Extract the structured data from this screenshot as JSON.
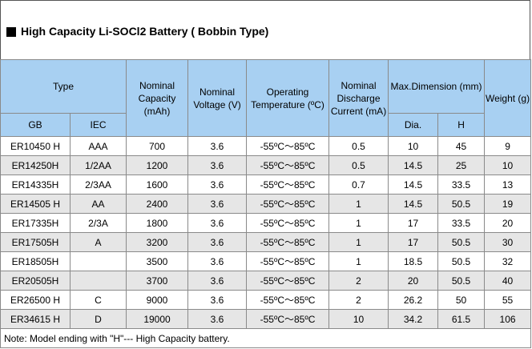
{
  "title": "High Capacity Li-SOCl2 Battery ( Bobbin Type)",
  "headers": {
    "type": "Type",
    "gb": "GB",
    "iec": "IEC",
    "capacity": "Nominal Capacity (mAh)",
    "voltage": "Nominal Voltage (V)",
    "temperature": "Operating Temperature (ºC)",
    "discharge": "Nominal Discharge Current (mA)",
    "dimension": "Max.Dimension (mm)",
    "dia": "Dia.",
    "h": "H",
    "weight": "Weight (g)"
  },
  "rows": [
    {
      "gb": "ER10450 H",
      "iec": "AAA",
      "capacity": "700",
      "voltage": "3.6",
      "temp": "-55ºC～85ºC",
      "current": "0.5",
      "dia": "10",
      "h": "45",
      "weight": "9"
    },
    {
      "gb": "ER14250H",
      "iec": "1/2AA",
      "capacity": "1200",
      "voltage": "3.6",
      "temp": "-55ºC～85ºC",
      "current": "0.5",
      "dia": "14.5",
      "h": "25",
      "weight": "10"
    },
    {
      "gb": "ER14335H",
      "iec": "2/3AA",
      "capacity": "1600",
      "voltage": "3.6",
      "temp": "-55ºC～85ºC",
      "current": "0.7",
      "dia": "14.5",
      "h": "33.5",
      "weight": "13"
    },
    {
      "gb": "ER14505 H",
      "iec": "AA",
      "capacity": "2400",
      "voltage": "3.6",
      "temp": "-55ºC～85ºC",
      "current": "1",
      "dia": "14.5",
      "h": "50.5",
      "weight": "19"
    },
    {
      "gb": "ER17335H",
      "iec": "2/3A",
      "capacity": "1800",
      "voltage": "3.6",
      "temp": "-55ºC～85ºC",
      "current": "1",
      "dia": "17",
      "h": "33.5",
      "weight": "20"
    },
    {
      "gb": "ER17505H",
      "iec": "A",
      "capacity": "3200",
      "voltage": "3.6",
      "temp": "-55ºC～85ºC",
      "current": "1",
      "dia": "17",
      "h": "50.5",
      "weight": "30"
    },
    {
      "gb": "ER18505H",
      "iec": "",
      "capacity": "3500",
      "voltage": "3.6",
      "temp": "-55ºC～85ºC",
      "current": "1",
      "dia": "18.5",
      "h": "50.5",
      "weight": "32"
    },
    {
      "gb": "ER20505H",
      "iec": "",
      "capacity": "3700",
      "voltage": "3.6",
      "temp": "-55ºC～85ºC",
      "current": "2",
      "dia": "20",
      "h": "50.5",
      "weight": "40"
    },
    {
      "gb": "ER26500 H",
      "iec": "C",
      "capacity": "9000",
      "voltage": "3.6",
      "temp": "-55ºC～85ºC",
      "current": "2",
      "dia": "26.2",
      "h": "50",
      "weight": "55"
    },
    {
      "gb": "ER34615 H",
      "iec": "D",
      "capacity": "19000",
      "voltage": "3.6",
      "temp": "-55ºC～85ºC",
      "current": "10",
      "dia": "34.2",
      "h": "61.5",
      "weight": "106"
    }
  ],
  "note": "Note: Model ending with \"H\"--- High Capacity battery.",
  "colors": {
    "header_bg": "#a8d0f2",
    "even_row_bg": "#e6e6e6",
    "odd_row_bg": "#ffffff",
    "border": "#8a8a8a"
  }
}
